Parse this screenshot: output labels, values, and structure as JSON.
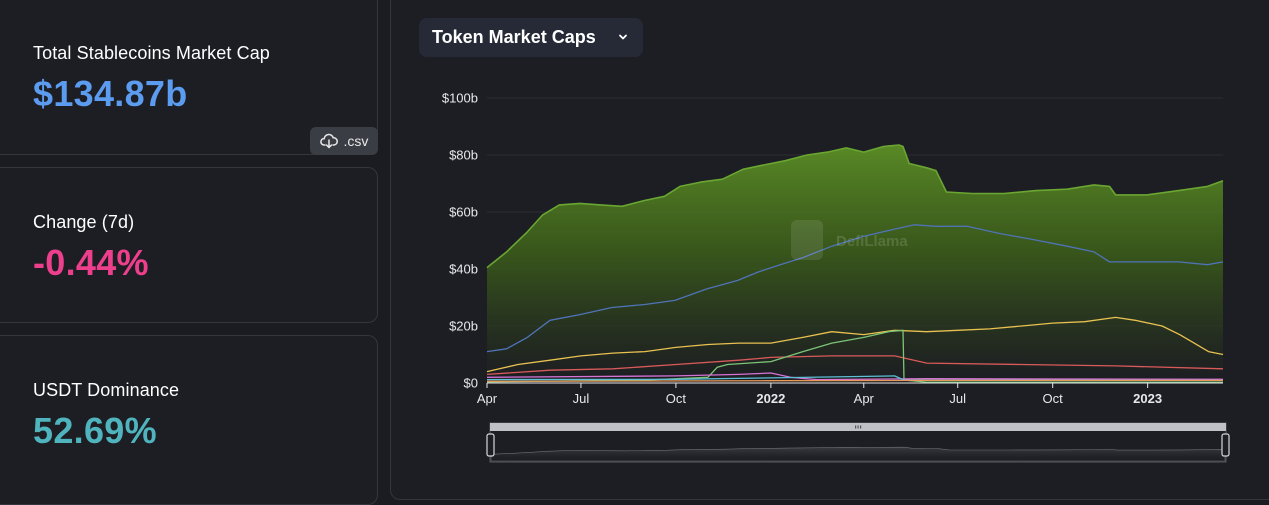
{
  "stats": {
    "market_cap": {
      "label": "Total Stablecoins Market Cap",
      "value": "$134.87b",
      "color": "#5b9bf0"
    },
    "change": {
      "label": "Change (7d)",
      "value": "-0.44%",
      "color": "#ed3f8c"
    },
    "dominance": {
      "label": "USDT Dominance",
      "value": "52.69%",
      "color": "#4fb4bd"
    },
    "csv_label": ".csv",
    "csv_icon": "cloud-download-icon"
  },
  "chart_selector": {
    "label": "Token Market Caps",
    "icon": "chevron-down-icon"
  },
  "watermark": "DefiLlama",
  "chart_data": {
    "type": "area",
    "x_start": "2021-04-01",
    "x_end": "2023-03-15",
    "ylim": [
      0,
      100
    ],
    "y_unit": "billion USD",
    "y_ticks": [
      "$0",
      "$20b",
      "$40b",
      "$60b",
      "$80b",
      "$100b"
    ],
    "x_ticks": [
      {
        "label": "Apr",
        "date": "2021-04-01",
        "bold": false
      },
      {
        "label": "Jul",
        "date": "2021-07-01",
        "bold": false
      },
      {
        "label": "Oct",
        "date": "2021-10-01",
        "bold": false
      },
      {
        "label": "2022",
        "date": "2022-01-01",
        "bold": true
      },
      {
        "label": "Apr",
        "date": "2022-04-01",
        "bold": false
      },
      {
        "label": "Jul",
        "date": "2022-07-01",
        "bold": false
      },
      {
        "label": "Oct",
        "date": "2022-10-01",
        "bold": false
      },
      {
        "label": "2023",
        "date": "2023-01-01",
        "bold": true
      }
    ],
    "grid": true,
    "series": [
      {
        "color": "#6aa632",
        "filled": true,
        "points": [
          [
            "2021-04-01",
            40.5
          ],
          [
            "2021-04-20",
            46
          ],
          [
            "2021-05-10",
            53
          ],
          [
            "2021-05-25",
            59
          ],
          [
            "2021-06-10",
            62.5
          ],
          [
            "2021-06-30",
            63
          ],
          [
            "2021-07-20",
            62.5
          ],
          [
            "2021-08-10",
            62
          ],
          [
            "2021-08-31",
            64
          ],
          [
            "2021-09-20",
            65.5
          ],
          [
            "2021-10-05",
            69
          ],
          [
            "2021-10-25",
            70.5
          ],
          [
            "2021-11-15",
            71.5
          ],
          [
            "2021-12-05",
            75
          ],
          [
            "2021-12-25",
            76.5
          ],
          [
            "2022-01-15",
            78
          ],
          [
            "2022-02-05",
            80
          ],
          [
            "2022-02-25",
            81
          ],
          [
            "2022-03-15",
            82.5
          ],
          [
            "2022-04-01",
            81
          ],
          [
            "2022-04-20",
            83
          ],
          [
            "2022-05-05",
            83.5
          ],
          [
            "2022-05-09",
            83
          ],
          [
            "2022-05-15",
            77
          ],
          [
            "2022-06-01",
            75.5
          ],
          [
            "2022-06-10",
            74.5
          ],
          [
            "2022-06-20",
            67
          ],
          [
            "2022-07-15",
            66.5
          ],
          [
            "2022-08-15",
            66.5
          ],
          [
            "2022-09-15",
            67.5
          ],
          [
            "2022-10-15",
            68
          ],
          [
            "2022-11-10",
            69.5
          ],
          [
            "2022-11-25",
            69
          ],
          [
            "2022-12-01",
            66
          ],
          [
            "2022-12-31",
            66
          ],
          [
            "2023-01-31",
            67.5
          ],
          [
            "2023-02-28",
            69
          ],
          [
            "2023-03-15",
            71
          ]
        ]
      },
      {
        "color": "#4f73b8",
        "filled": false,
        "points": [
          [
            "2021-04-01",
            11
          ],
          [
            "2021-04-20",
            12
          ],
          [
            "2021-05-10",
            16
          ],
          [
            "2021-06-01",
            22
          ],
          [
            "2021-06-30",
            24
          ],
          [
            "2021-07-31",
            26.5
          ],
          [
            "2021-08-31",
            27.5
          ],
          [
            "2021-09-30",
            29
          ],
          [
            "2021-10-31",
            33
          ],
          [
            "2021-11-30",
            36
          ],
          [
            "2021-12-20",
            39
          ],
          [
            "2022-01-10",
            41.5
          ],
          [
            "2022-02-01",
            44
          ],
          [
            "2022-03-01",
            48
          ],
          [
            "2022-04-01",
            51.5
          ],
          [
            "2022-05-01",
            54
          ],
          [
            "2022-05-20",
            55.5
          ],
          [
            "2022-06-10",
            55
          ],
          [
            "2022-07-10",
            55
          ],
          [
            "2022-08-10",
            52.5
          ],
          [
            "2022-09-10",
            50.5
          ],
          [
            "2022-10-15",
            48
          ],
          [
            "2022-11-10",
            46
          ],
          [
            "2022-11-25",
            42.5
          ],
          [
            "2022-12-31",
            42.5
          ],
          [
            "2023-01-31",
            42.5
          ],
          [
            "2023-02-28",
            41.5
          ],
          [
            "2023-03-15",
            42.5
          ]
        ]
      },
      {
        "color": "#e8c151",
        "filled": false,
        "points": [
          [
            "2021-04-01",
            4
          ],
          [
            "2021-05-01",
            6.5
          ],
          [
            "2021-06-01",
            8
          ],
          [
            "2021-07-01",
            9.5
          ],
          [
            "2021-08-01",
            10.5
          ],
          [
            "2021-09-01",
            11
          ],
          [
            "2021-10-01",
            12.5
          ],
          [
            "2021-11-01",
            13.5
          ],
          [
            "2021-12-01",
            14
          ],
          [
            "2022-01-01",
            14
          ],
          [
            "2022-02-01",
            16
          ],
          [
            "2022-03-01",
            18
          ],
          [
            "2022-04-01",
            17
          ],
          [
            "2022-05-01",
            18.5
          ],
          [
            "2022-06-01",
            18
          ],
          [
            "2022-07-01",
            18.5
          ],
          [
            "2022-08-01",
            19
          ],
          [
            "2022-09-01",
            20
          ],
          [
            "2022-10-01",
            21
          ],
          [
            "2022-11-01",
            21.5
          ],
          [
            "2022-12-01",
            23
          ],
          [
            "2022-12-20",
            22
          ],
          [
            "2023-01-15",
            20
          ],
          [
            "2023-02-01",
            17
          ],
          [
            "2023-02-15",
            14
          ],
          [
            "2023-03-01",
            11
          ],
          [
            "2023-03-15",
            10
          ]
        ]
      },
      {
        "color": "#d95a5a",
        "filled": false,
        "points": [
          [
            "2021-04-01",
            3
          ],
          [
            "2021-06-01",
            4.5
          ],
          [
            "2021-08-01",
            5
          ],
          [
            "2021-10-01",
            6.5
          ],
          [
            "2021-12-01",
            8
          ],
          [
            "2022-01-01",
            9
          ],
          [
            "2022-03-01",
            9.5
          ],
          [
            "2022-05-01",
            9.5
          ],
          [
            "2022-06-01",
            7
          ],
          [
            "2022-09-01",
            6.5
          ],
          [
            "2022-12-01",
            6
          ],
          [
            "2023-03-15",
            5
          ]
        ]
      },
      {
        "color": "#7cc576",
        "filled": false,
        "points": [
          [
            "2021-04-01",
            0.4
          ],
          [
            "2021-09-01",
            1
          ],
          [
            "2021-11-01",
            2
          ],
          [
            "2021-11-10",
            5.5
          ],
          [
            "2021-11-20",
            6.5
          ],
          [
            "2022-01-01",
            7.5
          ],
          [
            "2022-02-01",
            11
          ],
          [
            "2022-03-01",
            14
          ],
          [
            "2022-04-01",
            16
          ],
          [
            "2022-04-25",
            18
          ],
          [
            "2022-05-09",
            18.5
          ],
          [
            "2022-05-10",
            1
          ],
          [
            "2022-06-01",
            0.3
          ],
          [
            "2023-03-15",
            0.3
          ]
        ]
      },
      {
        "color": "#d673d6",
        "filled": false,
        "points": [
          [
            "2021-04-01",
            2
          ],
          [
            "2021-10-01",
            2.5
          ],
          [
            "2021-12-01",
            3
          ],
          [
            "2022-01-01",
            3.5
          ],
          [
            "2022-01-20",
            2
          ],
          [
            "2022-02-15",
            1.2
          ],
          [
            "2022-06-01",
            1.5
          ],
          [
            "2023-03-15",
            1.3
          ]
        ]
      },
      {
        "color": "#5cbfd6",
        "filled": false,
        "points": [
          [
            "2021-04-01",
            1.2
          ],
          [
            "2021-10-01",
            1.3
          ],
          [
            "2022-01-01",
            1.8
          ],
          [
            "2022-05-01",
            2.5
          ],
          [
            "2022-05-10",
            1
          ],
          [
            "2023-03-15",
            0.9
          ]
        ]
      },
      {
        "color": "#e89a5a",
        "filled": false,
        "points": [
          [
            "2021-04-01",
            0.6
          ],
          [
            "2022-01-01",
            0.8
          ],
          [
            "2022-06-01",
            0.9
          ],
          [
            "2023-03-15",
            0.9
          ]
        ]
      }
    ]
  }
}
